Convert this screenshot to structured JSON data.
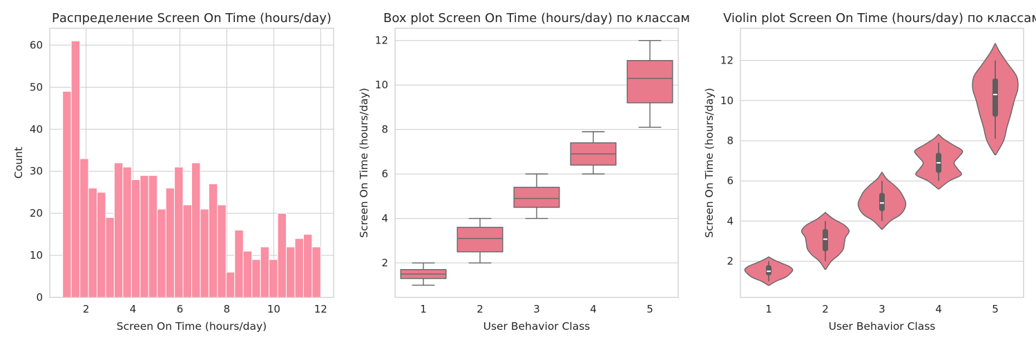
{
  "chart_data": [
    {
      "type": "bar",
      "title": "Распределение Screen On Time (hours/day)",
      "xlabel": "Screen On Time (hours/day)",
      "ylabel": "Count",
      "xlim": [
        0.45,
        12.55
      ],
      "ylim": [
        0,
        64
      ],
      "xticks": [
        2,
        4,
        6,
        8,
        10,
        12
      ],
      "yticks": [
        0,
        10,
        20,
        30,
        40,
        50,
        60
      ],
      "bin_start": 1.0,
      "bin_width": 0.3667,
      "values": [
        49,
        61,
        33,
        26,
        25,
        19,
        32,
        31,
        28,
        29,
        29,
        21,
        26,
        31,
        22,
        32,
        21,
        27,
        22,
        6,
        16,
        11,
        9,
        12,
        9,
        20,
        12,
        14,
        15,
        12
      ],
      "color": "#fa8ea2",
      "grid": true
    },
    {
      "type": "box",
      "title": "Box plot Screen On Time (hours/day) по классам",
      "xlabel": "User Behavior Class",
      "ylabel": "Screen On Time (hours/day)",
      "categories": [
        "1",
        "2",
        "3",
        "4",
        "5"
      ],
      "ylim": [
        0.45,
        12.55
      ],
      "yticks": [
        2,
        4,
        6,
        8,
        10,
        12
      ],
      "boxes": [
        {
          "whisker_low": 1.0,
          "q1": 1.3,
          "median": 1.5,
          "q3": 1.7,
          "whisker_high": 2.0
        },
        {
          "whisker_low": 2.0,
          "q1": 2.5,
          "median": 3.1,
          "q3": 3.6,
          "whisker_high": 4.0
        },
        {
          "whisker_low": 4.0,
          "q1": 4.5,
          "median": 4.9,
          "q3": 5.4,
          "whisker_high": 6.0
        },
        {
          "whisker_low": 6.0,
          "q1": 6.4,
          "median": 6.9,
          "q3": 7.4,
          "whisker_high": 7.9
        },
        {
          "whisker_low": 8.1,
          "q1": 9.2,
          "median": 10.3,
          "q3": 11.1,
          "whisker_high": 12.0
        }
      ],
      "color": "#e87a8c",
      "line_color": "#666666",
      "grid": true
    },
    {
      "type": "violin",
      "title": "Violin plot Screen On Time (hours/day) по классам",
      "xlabel": "User Behavior Class",
      "ylabel": "Screen On Time (hours/day)",
      "categories": [
        "1",
        "2",
        "3",
        "4",
        "5"
      ],
      "ylim": [
        0.2,
        13.6
      ],
      "yticks": [
        2,
        4,
        6,
        8,
        10,
        12
      ],
      "violins": [
        {
          "min": 0.8,
          "max": 2.2,
          "q1": 1.3,
          "median": 1.5,
          "q3": 1.8,
          "wlow": 1.0,
          "whigh": 2.0,
          "profile": [
            [
              0.8,
              0.02
            ],
            [
              1.0,
              0.3
            ],
            [
              1.2,
              0.7
            ],
            [
              1.45,
              0.95
            ],
            [
              1.6,
              1.0
            ],
            [
              1.75,
              0.85
            ],
            [
              1.9,
              0.55
            ],
            [
              2.05,
              0.25
            ],
            [
              2.2,
              0.02
            ]
          ]
        },
        {
          "min": 1.6,
          "max": 4.4,
          "q1": 2.5,
          "median": 3.1,
          "q3": 3.6,
          "wlow": 2.0,
          "whigh": 4.0,
          "profile": [
            [
              1.6,
              0.02
            ],
            [
              2.0,
              0.25
            ],
            [
              2.3,
              0.55
            ],
            [
              2.6,
              0.75
            ],
            [
              2.9,
              0.8
            ],
            [
              3.2,
              0.85
            ],
            [
              3.5,
              1.0
            ],
            [
              3.8,
              0.8
            ],
            [
              4.1,
              0.35
            ],
            [
              4.4,
              0.02
            ]
          ]
        },
        {
          "min": 3.6,
          "max": 6.4,
          "q1": 4.5,
          "median": 4.9,
          "q3": 5.4,
          "wlow": 4.0,
          "whigh": 6.0,
          "profile": [
            [
              3.6,
              0.02
            ],
            [
              4.0,
              0.35
            ],
            [
              4.3,
              0.75
            ],
            [
              4.6,
              0.95
            ],
            [
              4.9,
              1.0
            ],
            [
              5.2,
              0.9
            ],
            [
              5.5,
              0.75
            ],
            [
              5.8,
              0.5
            ],
            [
              6.1,
              0.2
            ],
            [
              6.4,
              0.02
            ]
          ]
        },
        {
          "min": 5.6,
          "max": 8.3,
          "q1": 6.4,
          "median": 6.9,
          "q3": 7.4,
          "wlow": 6.0,
          "whigh": 7.9,
          "profile": [
            [
              5.6,
              0.02
            ],
            [
              6.0,
              0.45
            ],
            [
              6.3,
              0.95
            ],
            [
              6.6,
              0.8
            ],
            [
              6.9,
              0.65
            ],
            [
              7.2,
              0.85
            ],
            [
              7.5,
              1.0
            ],
            [
              7.8,
              0.6
            ],
            [
              8.1,
              0.2
            ],
            [
              8.3,
              0.02
            ]
          ]
        },
        {
          "min": 7.3,
          "max": 12.8,
          "q1": 9.2,
          "median": 10.3,
          "q3": 11.1,
          "wlow": 8.1,
          "whigh": 12.0,
          "profile": [
            [
              7.3,
              0.02
            ],
            [
              8.0,
              0.35
            ],
            [
              8.7,
              0.5
            ],
            [
              9.3,
              0.65
            ],
            [
              10.0,
              0.8
            ],
            [
              10.6,
              0.95
            ],
            [
              11.2,
              0.9
            ],
            [
              11.8,
              0.55
            ],
            [
              12.4,
              0.2
            ],
            [
              12.8,
              0.02
            ]
          ]
        }
      ],
      "color": "#e87a8c",
      "line_color": "#666666",
      "grid": true
    }
  ]
}
